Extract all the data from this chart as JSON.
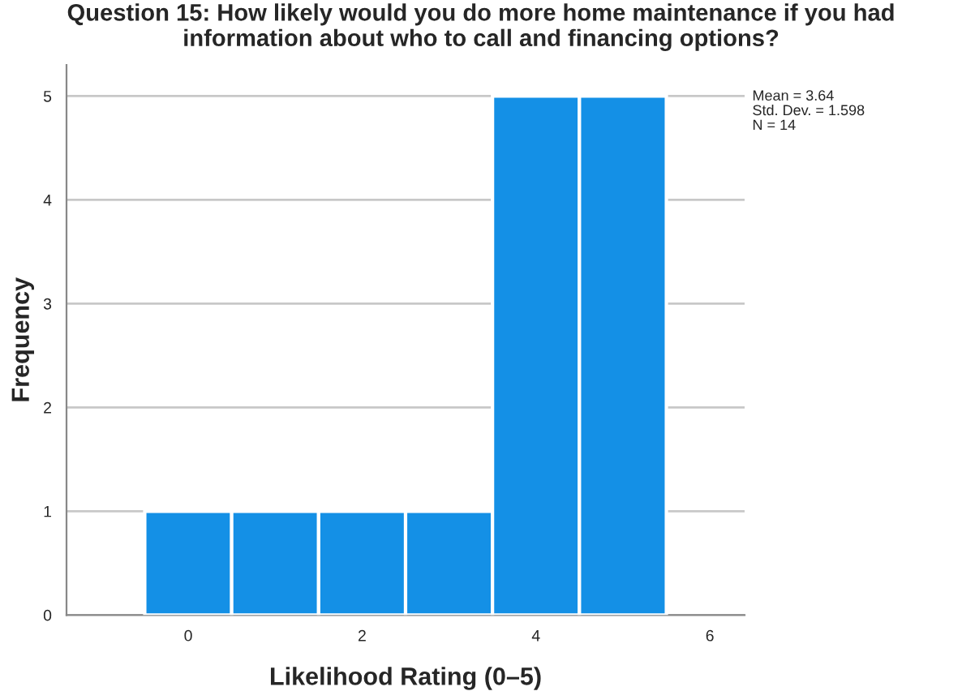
{
  "chart_data": {
    "type": "histogram",
    "title": "Question 15: How likely would you do more home maintenance if you had information about who to call and financing options?",
    "xlabel": "Likelihood Rating (0–5)",
    "ylabel": "Frequency",
    "bins": [
      -0.5,
      0.5,
      1.5,
      2.5,
      3.5,
      4.5,
      5.5
    ],
    "values": [
      1,
      1,
      1,
      1,
      5,
      5
    ],
    "color": "#1490e6",
    "xlim": [
      -1.4,
      6.4
    ],
    "xticks": [
      0,
      2,
      4,
      6
    ],
    "ylim": [
      0,
      5.3
    ],
    "yticks": [
      0,
      1,
      2,
      3,
      4,
      5
    ],
    "grid": "y",
    "annotations": [
      "Mean = 3.64",
      "Std. Dev. = 1.598",
      "N = 14"
    ]
  }
}
